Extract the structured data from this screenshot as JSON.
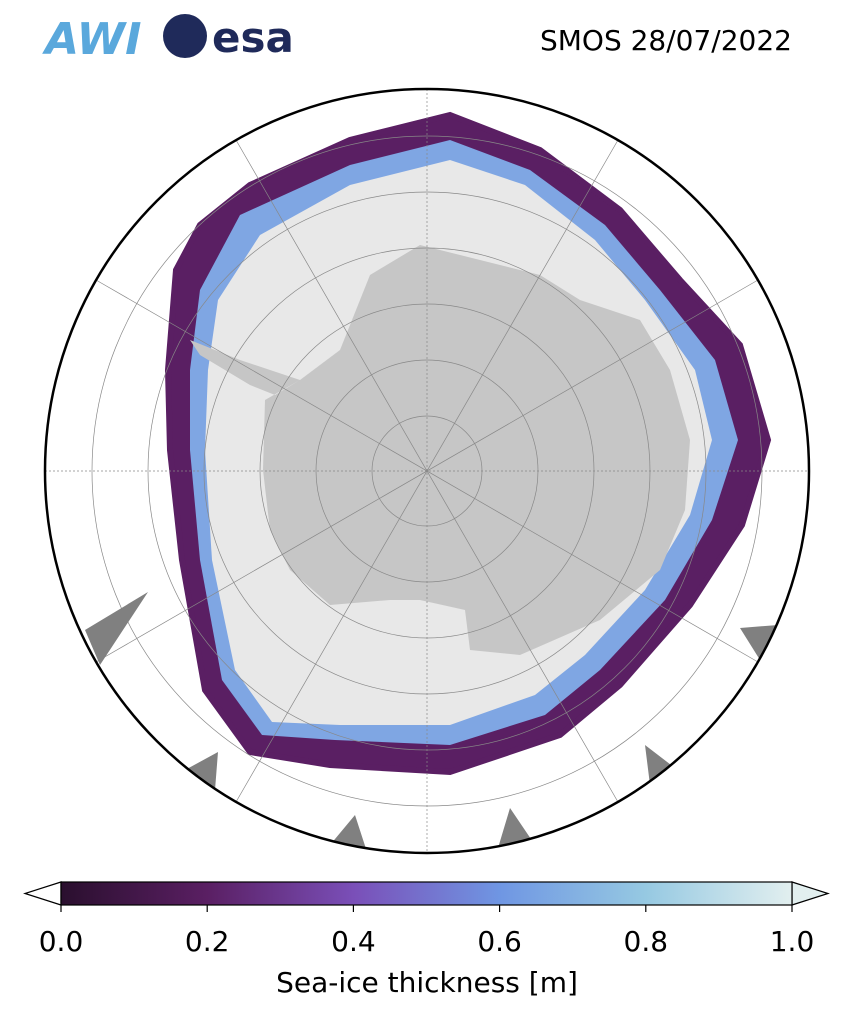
{
  "logos": {
    "awi": "AWI",
    "esa": "esa"
  },
  "map": {
    "title": "SMOS 28/07/2022"
  },
  "colorbar": {
    "label": "Sea-ice thickness [m]",
    "lim": [
      0,
      1
    ],
    "ticks": [
      {
        "value": 0,
        "label": "0.0"
      },
      {
        "value": 0.2,
        "label": "0.2"
      },
      {
        "value": 0.4,
        "label": "0.4"
      },
      {
        "value": 0.6,
        "label": "0.6"
      },
      {
        "value": 0.8,
        "label": "0.8"
      },
      {
        "value": 1,
        "label": "1.0"
      }
    ],
    "colormap": [
      "#2a0f2e",
      "#5a1f63",
      "#7a4fb8",
      "#6f96e3",
      "#96c9e2",
      "#e2efef"
    ]
  }
}
